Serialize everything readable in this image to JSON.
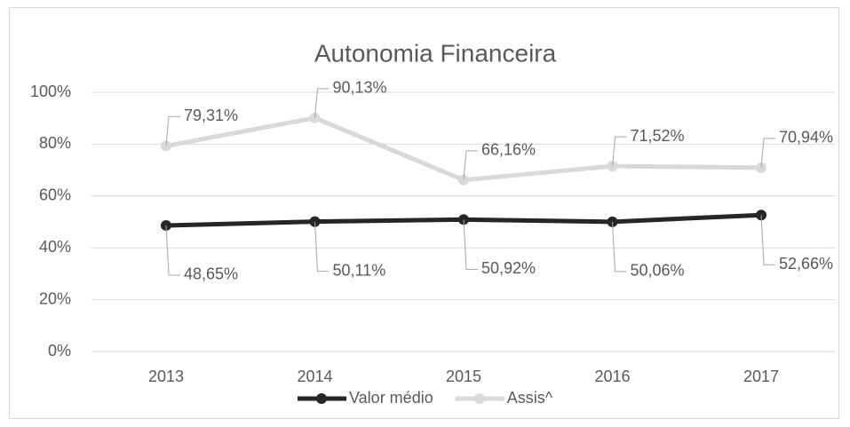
{
  "chart_data": {
    "type": "line",
    "title": "Autonomia Financeira",
    "categories": [
      "2013",
      "2014",
      "2015",
      "2016",
      "2017"
    ],
    "series": [
      {
        "name": "Valor médio",
        "color": "#262626",
        "values": [
          48.65,
          50.11,
          50.92,
          50.06,
          52.66
        ],
        "value_labels": [
          "48,65%",
          "50,11%",
          "50,92%",
          "50,06%",
          "52,66%"
        ]
      },
      {
        "name": "Assis^",
        "color": "#d9d9d9",
        "values": [
          79.31,
          90.13,
          66.16,
          71.52,
          70.94
        ],
        "value_labels": [
          "79,31%",
          "90,13%",
          "66,16%",
          "71,52%",
          "70,94%"
        ]
      }
    ],
    "ylim": [
      0,
      100
    ],
    "yticks": [
      {
        "value": 0,
        "label": "0%"
      },
      {
        "value": 20,
        "label": "20%"
      },
      {
        "value": 40,
        "label": "40%"
      },
      {
        "value": 60,
        "label": "60%"
      },
      {
        "value": 80,
        "label": "80%"
      },
      {
        "value": 100,
        "label": "100%"
      }
    ],
    "grid": true,
    "legend": "bottom"
  }
}
